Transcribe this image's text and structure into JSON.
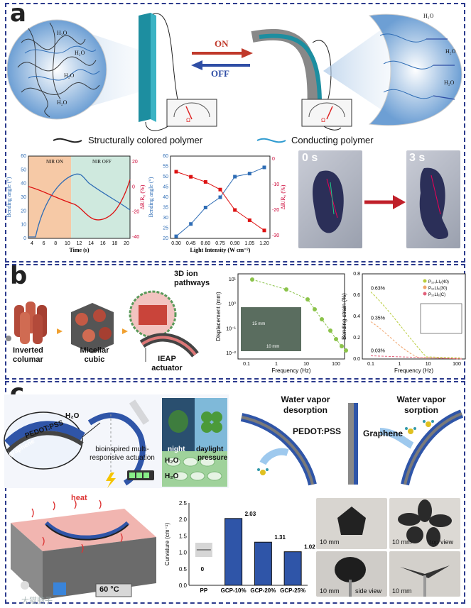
{
  "panel_a": {
    "label": "a",
    "on_label": "ON",
    "off_label": "OFF",
    "water_labels": [
      "H₂O",
      "H₂O",
      "H₂O",
      "H₂O",
      "H₂O",
      "H₂O",
      "H₂O"
    ],
    "meter_unit": "Ω",
    "legend_structural": "Structurally colored polymer",
    "legend_conducting": "Conducting polymer",
    "chart1": {
      "type": "line",
      "region_on": "NIR ON",
      "region_off": "NIR OFF",
      "xlabel": "Time (s)",
      "ylabel_left": "Bending angle (°)",
      "ylabel_right": "ΔR/R₀ (%)",
      "x_ticks": [
        "4",
        "6",
        "8",
        "10",
        "12",
        "14",
        "16",
        "18",
        "20"
      ],
      "y_ticks_left": [
        "0",
        "10",
        "20",
        "30",
        "40",
        "50",
        "60"
      ],
      "y_ticks_right": [
        "20",
        "0",
        "-20",
        "-40"
      ]
    },
    "chart2": {
      "type": "line",
      "xlabel": "Light Intensity (W cm⁻²)",
      "ylabel_left": "Bending angle (°)",
      "ylabel_right": "ΔR/R₀ (%)",
      "x_ticks": [
        "0.30",
        "0.45",
        "0.60",
        "0.75",
        "0.90",
        "1.05",
        "1.20"
      ],
      "y_ticks_left": [
        "20",
        "25",
        "30",
        "35",
        "40",
        "45",
        "50",
        "55",
        "60"
      ],
      "y_ticks_right": [
        "0",
        "-10",
        "-20",
        "-30"
      ]
    },
    "photo_start_label": "0 s",
    "photo_end_label": "3 s"
  },
  "panel_b": {
    "label": "b",
    "struct_labels": [
      "Inverted columar",
      "Micellar cubic",
      "IEAP actuator"
    ],
    "pathways_label": "3D ion pathways",
    "chart3": {
      "type": "line",
      "xlabel": "Frequency (Hz)",
      "ylabel": "Displacement (mm)",
      "x_ticks": [
        "0.1",
        "1",
        "10",
        "100"
      ],
      "y_ticks": [
        "10¹",
        "10⁰",
        "10⁻¹",
        "10⁻²"
      ],
      "scalebar": "15 mm",
      "scalebar2": "10 mm"
    },
    "chart4": {
      "type": "line",
      "xlabel": "Frequency (Hz)",
      "ylabel": "Bending strain (%)",
      "x_ticks": [
        "0.1",
        "1",
        "10",
        "100"
      ],
      "y_ticks": [
        "0.0",
        "0.2",
        "0.4",
        "0.6",
        "0.8"
      ],
      "legend": [
        "P₁₀₀LIₑ(40)",
        "P₁₀LIₑ(30)",
        "P₁₀LIₑ(C)"
      ],
      "annotations": [
        "0.63%",
        "0.35%",
        "0.03%"
      ]
    }
  },
  "panel_c": {
    "label": "c",
    "h2o": "H₂O",
    "pedot_label": "PEDOT:PSS",
    "graphene_label": "graphene",
    "bio_label": "bioinspired multi-responsive actuation",
    "night_label": "night",
    "daylight_label": "daylight",
    "pressure_label": "pressure",
    "desorption_label": "Water vapor desorption",
    "sorption_label": "Water vapor sorption",
    "pedot_label_big": "PEDOT:PSS",
    "graphene_label_big": "Graphene",
    "heat_label": "heat",
    "temp_label": "60 °C",
    "chart5": {
      "type": "bar",
      "categories": [
        "PP",
        "GCP-10%",
        "GCP-20%",
        "GCP-25%"
      ],
      "values": [
        0,
        2.03,
        1.31,
        1.02
      ],
      "value_labels": [
        "0",
        "2.03",
        "1.31",
        "1.02"
      ],
      "ylabel": "Curvature (cm⁻¹)",
      "y_ticks": [
        "0.0",
        "0.5",
        "1.0",
        "1.5",
        "2.0",
        "2.5"
      ],
      "ylim": [
        0,
        2.5
      ]
    },
    "photo_labels": {
      "p1_scale": "10 mm",
      "p2_scale": "10 mm",
      "p2_view": "top view",
      "p3_scale": "10 mm",
      "p3_view": "side view",
      "p4_scale": "10 mm"
    },
    "watermark": "大猫脑子"
  }
}
